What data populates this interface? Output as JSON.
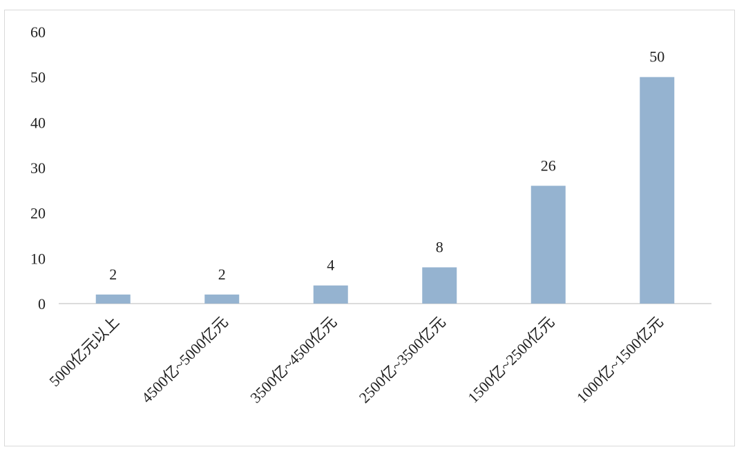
{
  "chart_data": {
    "type": "bar",
    "categories": [
      "5000亿元以上",
      "4500亿~5000亿元",
      "3500亿~4500亿元",
      "2500亿~3500亿元",
      "1500亿~2500亿元",
      "1000亿~1500亿元"
    ],
    "values": [
      2,
      2,
      4,
      8,
      26,
      50
    ],
    "ylim": [
      0,
      60
    ],
    "yticks": [
      0,
      10,
      20,
      30,
      40,
      50,
      60
    ],
    "title": "",
    "xlabel": "",
    "ylabel": "",
    "grid": false,
    "legend": "none",
    "bar_color": "#95b3d0",
    "axis_color": "#d0d0d0",
    "show_data_labels": true
  }
}
